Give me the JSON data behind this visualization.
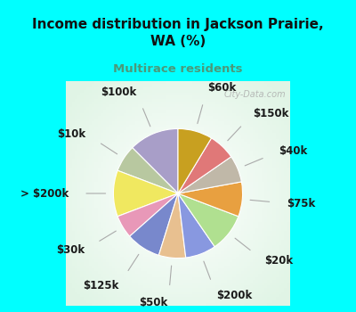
{
  "title": "Income distribution in Jackson Prairie,\nWA (%)",
  "subtitle": "Multirace residents",
  "title_color": "#111111",
  "subtitle_color": "#4a9a7a",
  "background_outer": "#00ffff",
  "background_chart": "#e0f5ec",
  "labels": [
    "$100k",
    "$10k",
    "> $200k",
    "$30k",
    "$125k",
    "$50k",
    "$200k",
    "$20k",
    "$75k",
    "$40k",
    "$150k",
    "$60k"
  ],
  "values": [
    13,
    7,
    12,
    6,
    9,
    7,
    8,
    10,
    9,
    7,
    7,
    9
  ],
  "colors": [
    "#a89ec8",
    "#b8c8a0",
    "#f0e860",
    "#e898b8",
    "#7888cc",
    "#e8c090",
    "#8898e0",
    "#b0e090",
    "#e8a040",
    "#c0b8a8",
    "#e07878",
    "#c8a020"
  ],
  "label_fontsize": 8.5,
  "watermark": "City-Data.com",
  "startangle": 90
}
